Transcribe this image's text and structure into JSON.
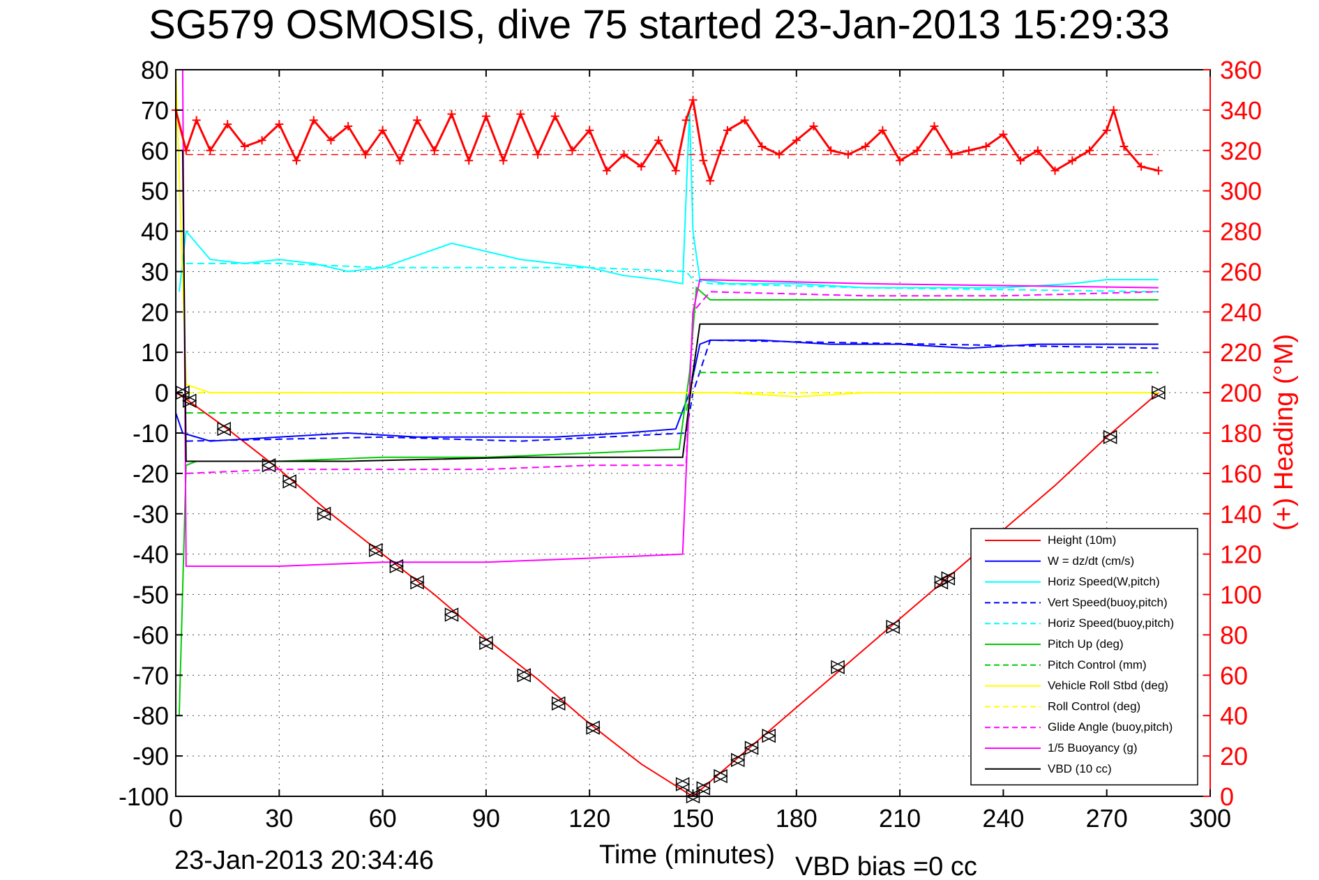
{
  "chart_data": {
    "type": "line",
    "title": "SG579 OSMOSIS, dive 75 started 23-Jan-2013 15:29:33",
    "xlabel": "Time (minutes)",
    "ylabel_right": "(+) Heading (°M)",
    "xlim": [
      0,
      300
    ],
    "ylim": [
      -100,
      80
    ],
    "y2lim": [
      0,
      360
    ],
    "xticks": [
      "0",
      "30",
      "60",
      "90",
      "120",
      "150",
      "180",
      "210",
      "240",
      "270",
      "300"
    ],
    "yticks": [
      "80",
      "70",
      "60",
      "50",
      "40",
      "30",
      "20",
      "10",
      "0",
      "-10",
      "-20",
      "-30",
      "-40",
      "-50",
      "-60",
      "-70",
      "-80",
      "-90",
      "-100"
    ],
    "y2ticks": [
      "360",
      "340",
      "320",
      "300",
      "280",
      "260",
      "240",
      "220",
      "200",
      "180",
      "160",
      "140",
      "120",
      "100",
      "80",
      "60",
      "40",
      "20",
      "0"
    ],
    "grid": true,
    "legend_position": "bottom-right",
    "footer_left": "23-Jan-2013 20:34:46",
    "footer_right": "VBD bias =0 cc",
    "legend": [
      {
        "label": "Height (10m)",
        "color": "#ff0000",
        "dash": "solid"
      },
      {
        "label": "W = dz/dt (cm/s)",
        "color": "#0000ff",
        "dash": "solid"
      },
      {
        "label": "Horiz Speed(W,pitch)",
        "color": "#00ffff",
        "dash": "solid"
      },
      {
        "label": "Vert Speed(buoy,pitch)",
        "color": "#0000ff",
        "dash": "dashed"
      },
      {
        "label": "Horiz Speed(buoy,pitch)",
        "color": "#00ffff",
        "dash": "dashed"
      },
      {
        "label": "Pitch Up (deg)",
        "color": "#00cc00",
        "dash": "solid"
      },
      {
        "label": "Pitch Control (mm)",
        "color": "#00cc00",
        "dash": "dashed"
      },
      {
        "label": "Vehicle Roll Stbd (deg)",
        "color": "#ffff00",
        "dash": "solid"
      },
      {
        "label": "Roll Control (deg)",
        "color": "#ffff00",
        "dash": "dashed"
      },
      {
        "label": "Glide Angle (buoy,pitch)",
        "color": "#ff00ff",
        "dash": "dashed"
      },
      {
        "label": "1/5 Buoyancy (g)",
        "color": "#ff00ff",
        "dash": "solid"
      },
      {
        "label": "VBD (10 cc)",
        "color": "#000000",
        "dash": "solid"
      }
    ],
    "series": [
      {
        "name": "Height (10m)",
        "axis": "left",
        "x": [
          0,
          2,
          15,
          30,
          45,
          60,
          75,
          90,
          105,
          120,
          135,
          148,
          150,
          165,
          180,
          195,
          210,
          225,
          240,
          255,
          270,
          285
        ],
        "y": [
          0,
          -1,
          -9,
          -19,
          -30,
          -40,
          -50,
          -61,
          -71,
          -82,
          -92,
          -99,
          -100,
          -89,
          -78,
          -67,
          -56,
          -45,
          -34,
          -23,
          -11,
          0
        ]
      },
      {
        "name": "W = dz/dt (cm/s)",
        "axis": "left",
        "x": [
          0,
          2,
          10,
          30,
          50,
          70,
          90,
          110,
          130,
          145,
          149,
          152,
          155,
          170,
          190,
          210,
          230,
          250,
          270,
          285
        ],
        "y": [
          -5,
          -10,
          -12,
          -11,
          -10,
          -11,
          -11,
          -11,
          -10,
          -9,
          0,
          12,
          13,
          13,
          12,
          12,
          11,
          12,
          12,
          12
        ]
      },
      {
        "name": "Horiz Speed(W,pitch)",
        "axis": "left",
        "x": [
          1,
          3,
          10,
          20,
          30,
          40,
          50,
          60,
          70,
          80,
          90,
          100,
          110,
          120,
          130,
          140,
          147,
          149,
          150,
          152,
          160,
          180,
          200,
          220,
          240,
          260,
          270,
          285
        ],
        "y": [
          25,
          40,
          33,
          32,
          33,
          32,
          30,
          31,
          34,
          37,
          35,
          33,
          32,
          31,
          29,
          28,
          27,
          70,
          40,
          28,
          27,
          27,
          26,
          26,
          26,
          27,
          28,
          28
        ]
      },
      {
        "name": "Vert Speed(buoy,pitch)",
        "axis": "left",
        "x": [
          3,
          60,
          100,
          148,
          150,
          155,
          285
        ],
        "y": [
          -12,
          -11,
          -12,
          -10,
          0,
          13,
          11
        ]
      },
      {
        "name": "Horiz Speed(buoy,pitch)",
        "axis": "left",
        "x": [
          3,
          30,
          60,
          90,
          120,
          148,
          150,
          155,
          200,
          285
        ],
        "y": [
          32,
          32,
          31,
          31,
          31,
          30,
          28,
          27,
          26,
          25
        ]
      },
      {
        "name": "Pitch Up (deg)",
        "axis": "left",
        "x": [
          1,
          3,
          6,
          30,
          60,
          90,
          120,
          146,
          149,
          151,
          155,
          200,
          240,
          285
        ],
        "y": [
          -80,
          -18,
          -17,
          -17,
          -16,
          -16,
          -15,
          -14,
          5,
          26,
          23,
          23,
          23,
          23
        ]
      },
      {
        "name": "Pitch Control (mm)",
        "axis": "left",
        "x": [
          3,
          148,
          150,
          285
        ],
        "y": [
          -5,
          -5,
          5,
          5
        ]
      },
      {
        "name": "Vehicle Roll Stbd (deg)",
        "axis": "left",
        "x": [
          0,
          3,
          10,
          30,
          60,
          90,
          120,
          148,
          160,
          180,
          200,
          240,
          270,
          285
        ],
        "y": [
          80,
          2,
          0,
          0,
          0,
          0,
          0,
          0,
          0,
          -1,
          0,
          0,
          0,
          0
        ]
      },
      {
        "name": "Roll Control (deg)",
        "axis": "left",
        "x": [
          3,
          285
        ],
        "y": [
          0,
          0
        ]
      },
      {
        "name": "Glide Angle (buoy,pitch)",
        "axis": "left",
        "x": [
          3,
          30,
          60,
          90,
          120,
          148,
          150,
          155,
          200,
          240,
          285
        ],
        "y": [
          -20,
          -19,
          -19,
          -19,
          -18,
          -18,
          20,
          25,
          24,
          24,
          25
        ]
      },
      {
        "name": "1/5 Buoyancy (g)",
        "axis": "left",
        "x": [
          2,
          3,
          30,
          60,
          90,
          120,
          147,
          150,
          152,
          200,
          285
        ],
        "y": [
          80,
          -43,
          -43,
          -42,
          -42,
          -41,
          -40,
          20,
          28,
          27,
          26
        ]
      },
      {
        "name": "VBD (10 cc)",
        "axis": "left",
        "x": [
          2,
          3,
          50,
          100,
          147,
          150,
          152,
          285
        ],
        "y": [
          60,
          -17,
          -17,
          -16,
          -16,
          5,
          17,
          17
        ]
      },
      {
        "name": "Heading",
        "axis": "right",
        "marker": "+",
        "x": [
          0,
          3,
          6,
          10,
          15,
          20,
          25,
          30,
          35,
          40,
          45,
          50,
          55,
          60,
          65,
          70,
          75,
          80,
          85,
          90,
          95,
          100,
          105,
          110,
          115,
          120,
          125,
          130,
          135,
          140,
          145,
          148,
          150,
          153,
          155,
          158,
          160,
          165,
          170,
          175,
          180,
          185,
          190,
          195,
          200,
          205,
          210,
          215,
          220,
          225,
          230,
          235,
          240,
          245,
          250,
          255,
          260,
          265,
          270,
          272,
          275,
          280,
          285
        ],
        "y": [
          340,
          320,
          335,
          320,
          333,
          322,
          325,
          333,
          315,
          335,
          325,
          332,
          318,
          330,
          315,
          335,
          320,
          338,
          315,
          337,
          315,
          338,
          318,
          337,
          320,
          330,
          310,
          318,
          312,
          325,
          310,
          335,
          345,
          315,
          305,
          320,
          330,
          335,
          322,
          318,
          325,
          332,
          320,
          318,
          322,
          330,
          315,
          320,
          332,
          318,
          320,
          322,
          328,
          315,
          320,
          310,
          315,
          320,
          330,
          340,
          322,
          312,
          310
        ]
      }
    ],
    "depth_markers_triangles": {
      "x": [
        2,
        4,
        14,
        27,
        33,
        43,
        58,
        64,
        70,
        80,
        90,
        101,
        111,
        121,
        147,
        150,
        153,
        158,
        163,
        167,
        172,
        192,
        208,
        222,
        224,
        271,
        285
      ],
      "y": [
        0,
        -2,
        -9,
        -18,
        -22,
        -30,
        -39,
        -43,
        -47,
        -55,
        -62,
        -70,
        -77,
        -83,
        -97,
        -100,
        -98,
        -95,
        -91,
        -88,
        -85,
        -68,
        -58,
        -47,
        -46,
        -11,
        0
      ]
    }
  }
}
